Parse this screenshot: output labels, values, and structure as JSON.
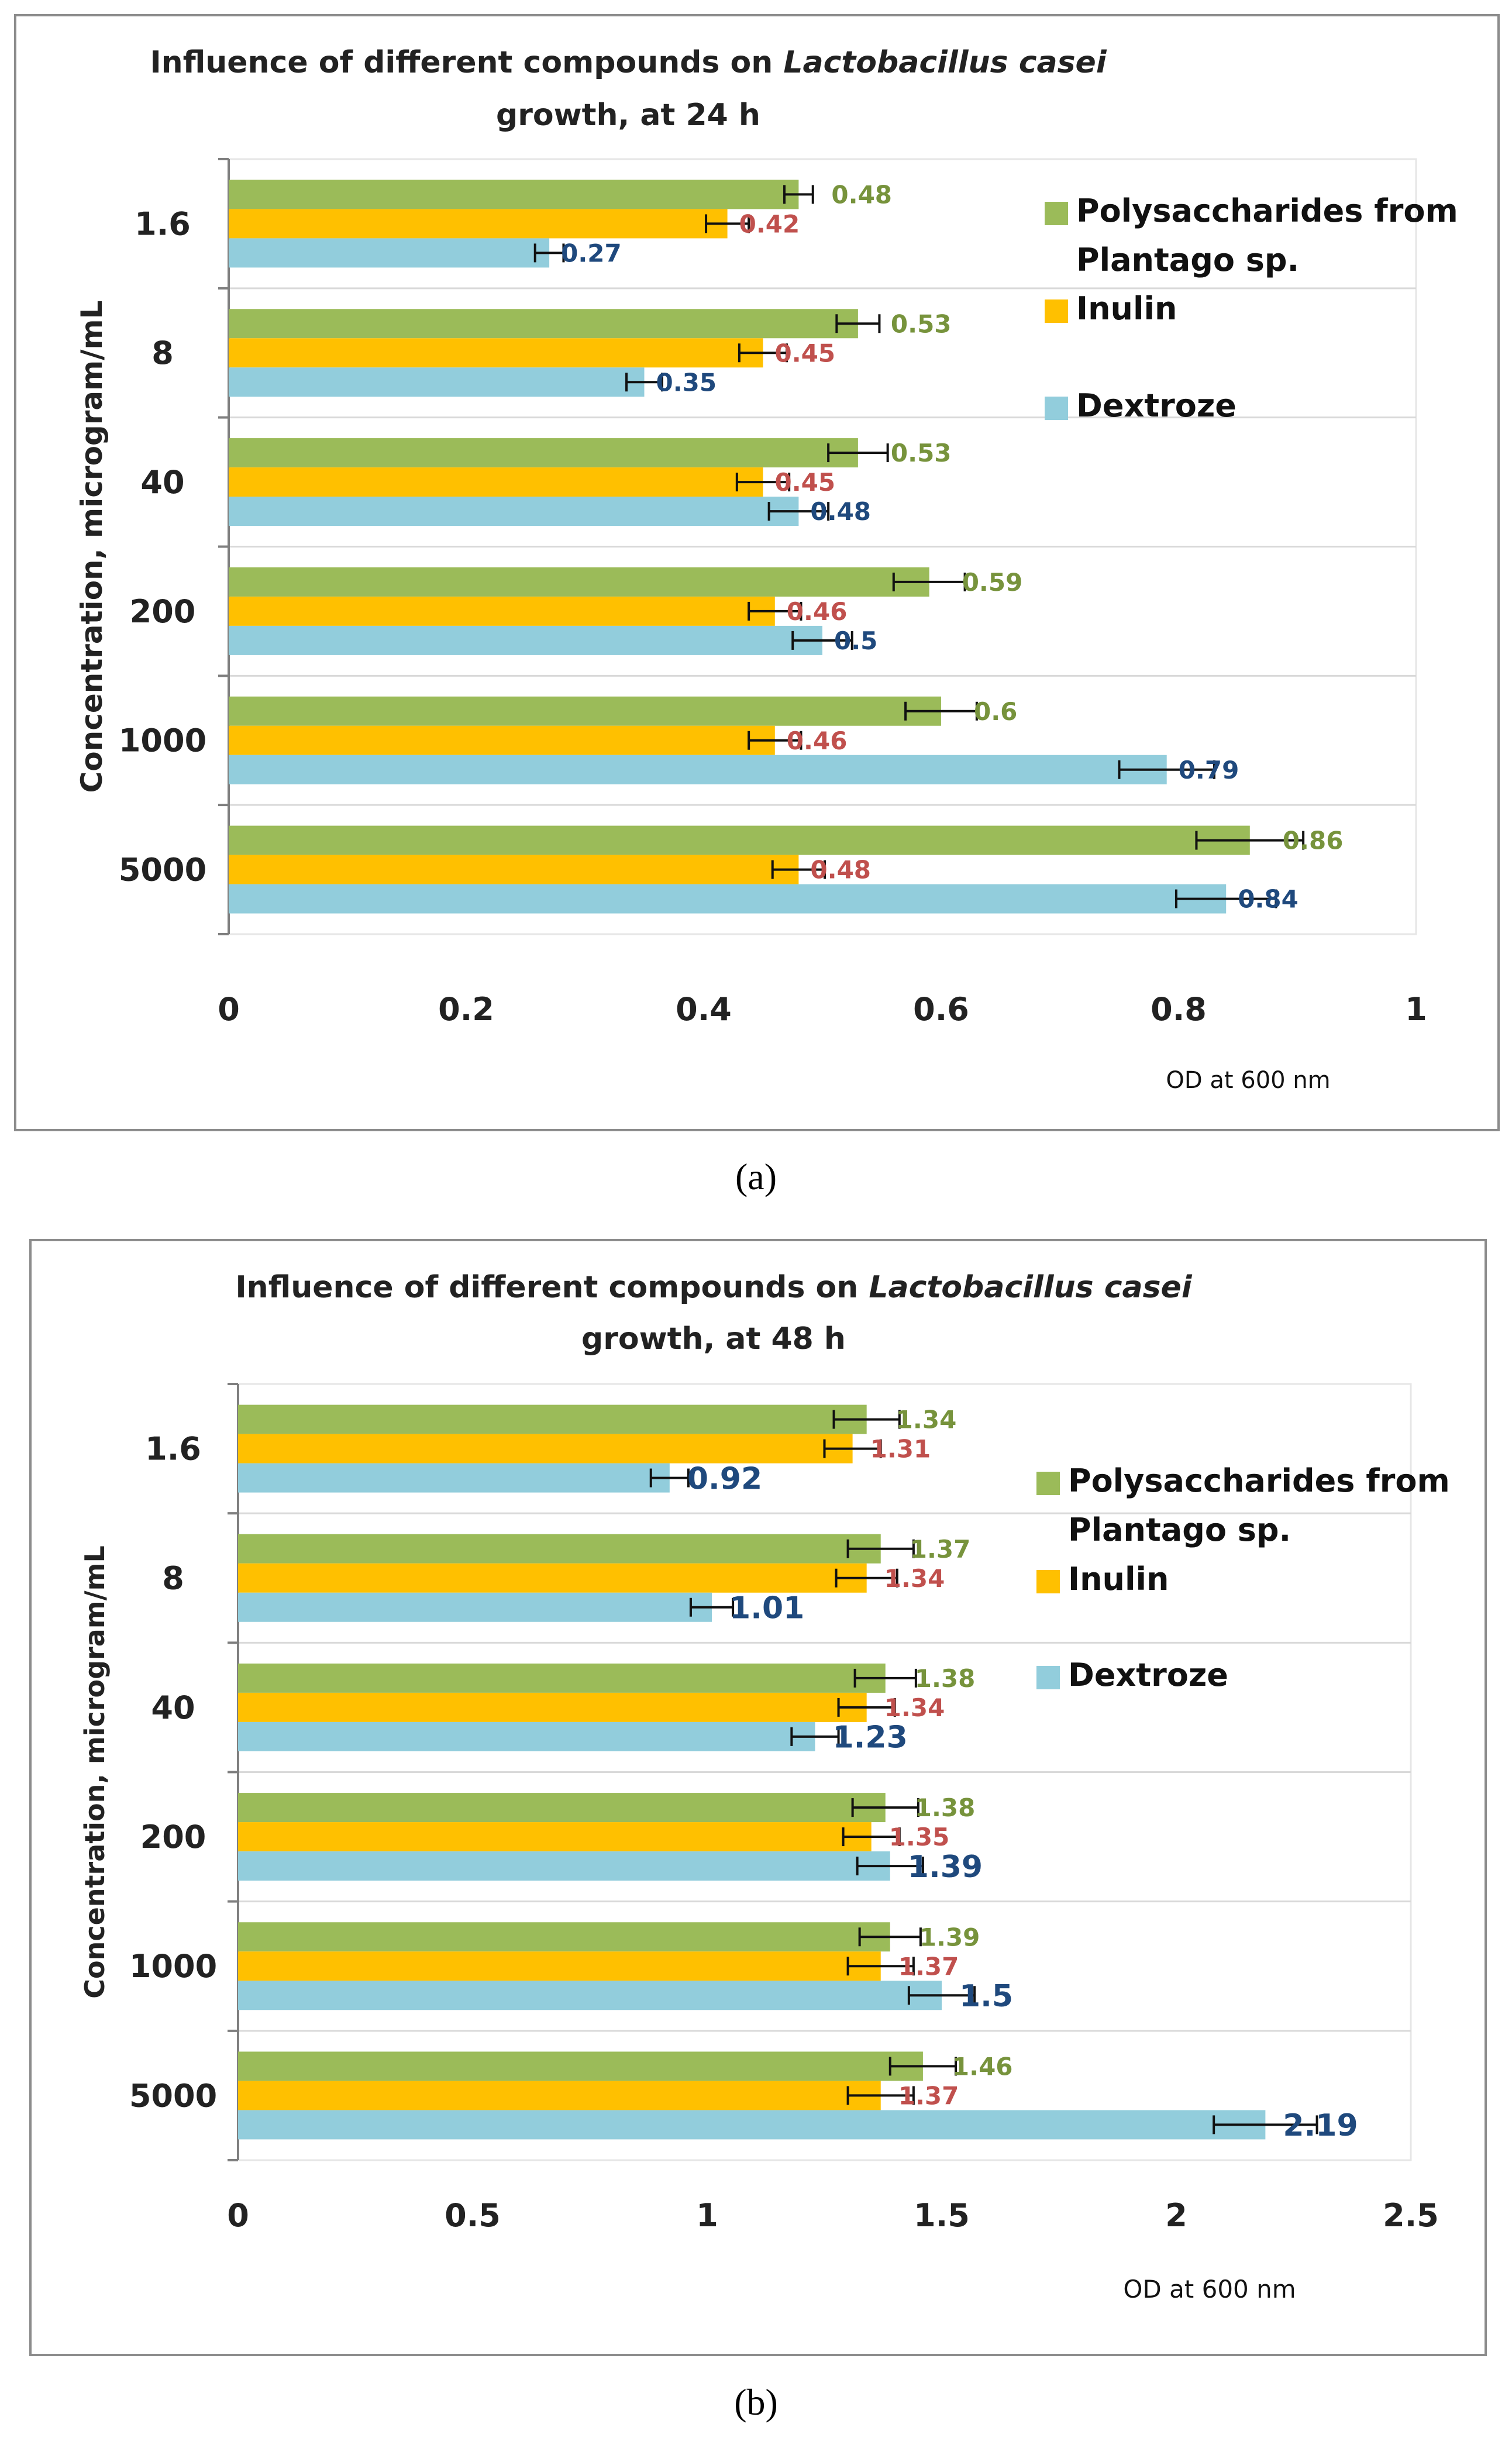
{
  "colors": {
    "polysaccharides": "#9bbb59",
    "inulin": "#ffc000",
    "dextroze": "#92cddc",
    "label_polysaccharides": "#77933c",
    "label_inulin": "#c0504d",
    "label_dextroze": "#1f497d",
    "grid": "#d9d9d9"
  },
  "chart_data": [
    {
      "type": "bar",
      "orientation": "horizontal",
      "panel_caption": "(a)",
      "title_line1_prefix": "Influence of different compounds on ",
      "title_line1_italic": "Lactobacillus casei",
      "title_line2": "growth, at 24 h",
      "xlabel": "OD at  600 nm",
      "ylabel": "Concentration, microgram/mL",
      "categories": [
        "1.6",
        "8",
        "40",
        "200",
        "1000",
        "5000"
      ],
      "xlim": [
        0,
        1
      ],
      "xticks": [
        "0",
        "0.2",
        "0.4",
        "0.6",
        "0.8",
        "1"
      ],
      "legend_position": "top-right",
      "series": [
        {
          "name": "Polysaccharides from Plantago sp.",
          "legend_lines": [
            "Polysaccharides from",
            "Plantago sp."
          ],
          "values": [
            0.48,
            0.53,
            0.53,
            0.59,
            0.6,
            0.86
          ],
          "labels": [
            "0.48",
            "0.53",
            "0.53",
            "0.59",
            "0.6",
            "0.86"
          ],
          "errors": [
            0.012,
            0.018,
            0.025,
            0.03,
            0.03,
            0.045
          ]
        },
        {
          "name": "Inulin",
          "legend_lines": [
            "Inulin"
          ],
          "values": [
            0.42,
            0.45,
            0.45,
            0.46,
            0.46,
            0.48
          ],
          "labels": [
            "0.42",
            "0.45",
            "0.45",
            "0.46",
            "0.46",
            "0.48"
          ],
          "errors": [
            0.018,
            0.02,
            0.022,
            0.022,
            0.022,
            0.022
          ]
        },
        {
          "name": "Dextroze",
          "legend_lines": [
            "Dextroze"
          ],
          "values": [
            0.27,
            0.35,
            0.48,
            0.5,
            0.79,
            0.84
          ],
          "labels": [
            "0.27",
            "0.35",
            "0.48",
            "0.5",
            "0.79",
            "0.84"
          ],
          "errors": [
            0.012,
            0.015,
            0.025,
            0.025,
            0.04,
            0.042
          ]
        }
      ]
    },
    {
      "type": "bar",
      "orientation": "horizontal",
      "panel_caption": "(b)",
      "title_line1_prefix": "Influence of different compounds on ",
      "title_line1_italic": "Lactobacillus casei",
      "title_line2": "growth, at 48 h",
      "xlabel": "OD at  600 nm",
      "ylabel": "Concentration, microgram/mL",
      "categories": [
        "1.6",
        "8",
        "40",
        "200",
        "1000",
        "5000"
      ],
      "xlim": [
        0,
        2.5
      ],
      "xticks": [
        "0",
        "0.5",
        "1",
        "1.5",
        "2",
        "2.5"
      ],
      "legend_position": "top-right",
      "series": [
        {
          "name": "Polysaccharides from Plantago sp.",
          "legend_lines": [
            "Polysaccharides from",
            "Plantago sp."
          ],
          "values": [
            1.34,
            1.37,
            1.38,
            1.38,
            1.39,
            1.46
          ],
          "labels": [
            "1.34",
            "1.37",
            "1.38",
            "1.38",
            "1.39",
            "1.46"
          ],
          "errors": [
            0.07,
            0.07,
            0.065,
            0.07,
            0.065,
            0.07
          ]
        },
        {
          "name": "Inulin",
          "legend_lines": [
            "Inulin"
          ],
          "values": [
            1.31,
            1.34,
            1.34,
            1.35,
            1.37,
            1.37
          ],
          "labels": [
            "1.31",
            "1.34",
            "1.34",
            "1.35",
            "1.37",
            "1.37"
          ],
          "errors": [
            0.06,
            0.065,
            0.06,
            0.06,
            0.07,
            0.07
          ]
        },
        {
          "name": "Dextroze",
          "legend_lines": [
            "Dextroze"
          ],
          "values": [
            0.92,
            1.01,
            1.23,
            1.39,
            1.5,
            2.19
          ],
          "labels": [
            "0.92",
            "1.01",
            "1.23",
            "1.39",
            "1.5",
            "2.19"
          ],
          "errors": [
            0.04,
            0.045,
            0.05,
            0.07,
            0.07,
            0.11
          ]
        }
      ]
    }
  ]
}
